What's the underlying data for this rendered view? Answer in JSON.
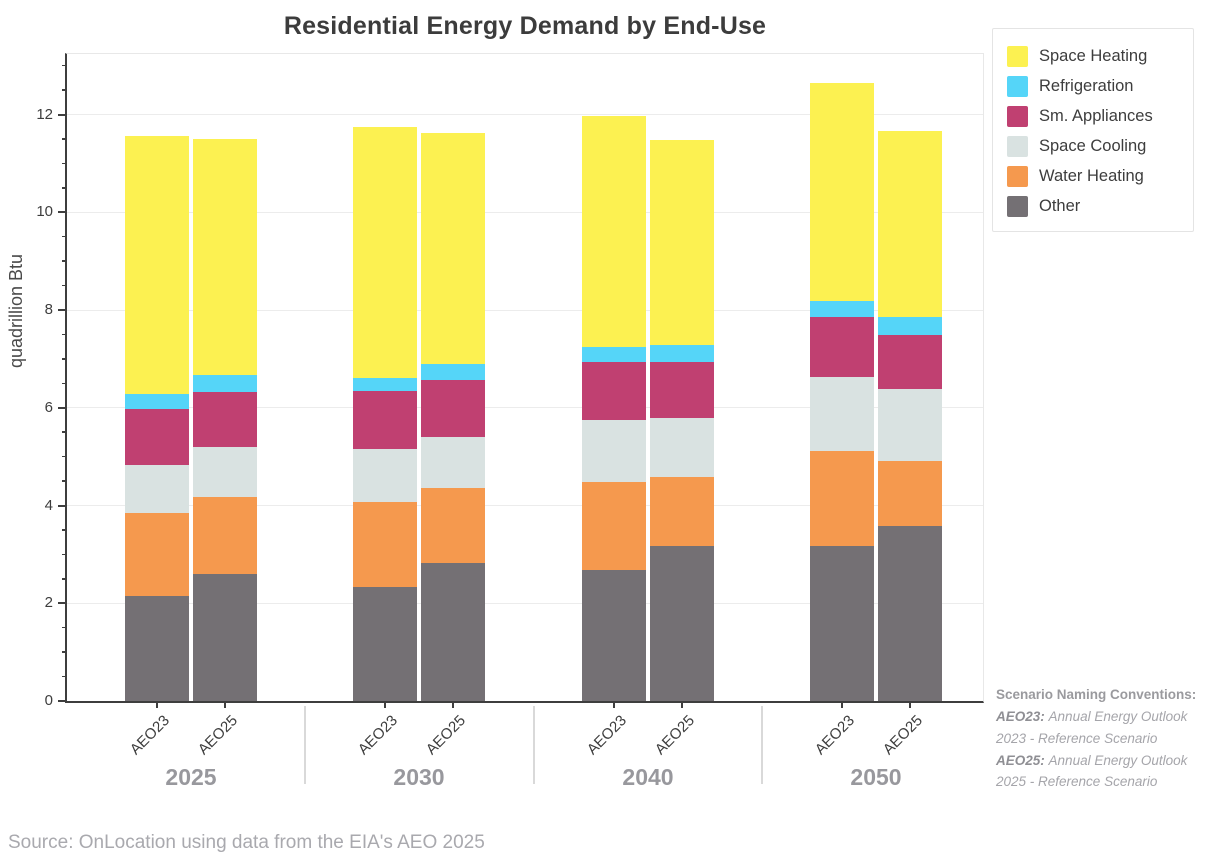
{
  "title": "Residential Energy Demand by End-Use",
  "source_note": "Source: OnLocation using data from the EIA's AEO 2025",
  "side_note": {
    "heading": "Scenario Naming Conventions:",
    "entries": [
      {
        "term": "AEO23:",
        "definition": "Annual Energy Outlook 2023 - Reference Scenario"
      },
      {
        "term": "AEO25:",
        "definition": "Annual Energy Outlook 2025 - Reference Scenario"
      }
    ]
  },
  "colors": {
    "axis": "#3e3e3e",
    "gridline": "#ececec",
    "group_label_gray": "#98989d",
    "note_gray": "#a5a5aa",
    "space_heating": "#FCF151",
    "refrigeration": "#55D5F8",
    "sm_appliances": "#C04071",
    "space_cooling": "#D9E2E1",
    "water_heating": "#F5994E",
    "other": "#747074"
  },
  "chart_data": {
    "type": "bar",
    "stacked": true,
    "title": "Residential Energy Demand by End-Use",
    "xlabel": "",
    "ylabel": "quadrillion Btu",
    "ylim": [
      0,
      13.3
    ],
    "yticks": [
      0,
      2,
      4,
      6,
      8,
      10,
      12
    ],
    "minor_tick_step": 0.5,
    "grid": "horizontal gridlines at labeled ticks (every 2 units)",
    "legend_position": "outside top-right",
    "groups": [
      "2025",
      "2030",
      "2040",
      "2050"
    ],
    "bars_per_group": [
      "AEO23",
      "AEO25"
    ],
    "bar_order": [
      "2025-AEO23",
      "2025-AEO25",
      "2030-AEO23",
      "2030-AEO25",
      "2040-AEO23",
      "2040-AEO25",
      "2050-AEO23",
      "2050-AEO25"
    ],
    "series_stack_order": "bottom to top",
    "series": [
      {
        "name": "Other",
        "color": "#747074",
        "values": [
          2.15,
          2.6,
          2.33,
          2.82,
          2.68,
          3.18,
          3.18,
          3.58
        ]
      },
      {
        "name": "Water Heating",
        "color": "#F5994E",
        "values": [
          1.7,
          1.58,
          1.74,
          1.53,
          1.81,
          1.41,
          1.93,
          1.34
        ]
      },
      {
        "name": "Space Cooling",
        "color": "#D9E2E1",
        "values": [
          0.97,
          1.02,
          1.09,
          1.06,
          1.26,
          1.21,
          1.51,
          1.46
        ]
      },
      {
        "name": "Sm. Appliances",
        "color": "#C04071",
        "values": [
          1.16,
          1.12,
          1.18,
          1.16,
          1.19,
          1.14,
          1.24,
          1.1
        ]
      },
      {
        "name": "Refrigeration",
        "color": "#55D5F8",
        "values": [
          0.31,
          0.36,
          0.27,
          0.33,
          0.3,
          0.34,
          0.33,
          0.38
        ]
      },
      {
        "name": "Space Heating",
        "color": "#FCF151",
        "values": [
          5.28,
          4.82,
          5.14,
          4.73,
          4.74,
          4.19,
          4.46,
          3.8
        ]
      }
    ],
    "totals": [
      11.57,
      11.5,
      11.75,
      11.63,
      11.98,
      11.47,
      12.65,
      11.66
    ]
  }
}
